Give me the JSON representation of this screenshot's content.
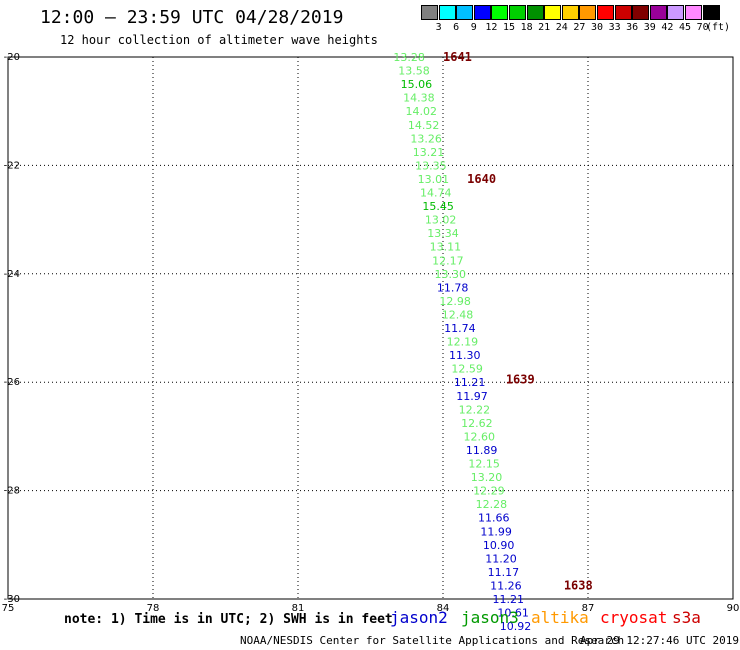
{
  "header": {
    "title": "12:00 – 23:59 UTC 04/28/2019",
    "subtitle": "12 hour collection of altimeter wave heights"
  },
  "color_scale": {
    "unit": "(ft)",
    "swatches": [
      {
        "color": "#808080"
      },
      {
        "color": "#00ffff"
      },
      {
        "color": "#00bfff"
      },
      {
        "color": "#0000ff"
      },
      {
        "color": "#00ff00"
      },
      {
        "color": "#00d000"
      },
      {
        "color": "#009000"
      },
      {
        "color": "#ffff00"
      },
      {
        "color": "#ffd000"
      },
      {
        "color": "#ff9900"
      },
      {
        "color": "#ff0000"
      },
      {
        "color": "#cc0000"
      },
      {
        "color": "#800000"
      },
      {
        "color": "#990099"
      },
      {
        "color": "#cc99ff"
      },
      {
        "color": "#ff88ff"
      },
      {
        "color": "#000000"
      }
    ],
    "labels": [
      "3",
      "6",
      "9",
      "12",
      "15",
      "18",
      "21",
      "24",
      "27",
      "30",
      "33",
      "36",
      "39",
      "42",
      "45",
      "70"
    ]
  },
  "chart_data": {
    "type": "scatter",
    "xlim": [
      75,
      90
    ],
    "ylim": [
      -30,
      -20
    ],
    "x_ticks": [
      75,
      78,
      81,
      84,
      87,
      90
    ],
    "y_ticks": [
      -20,
      -22,
      -24,
      -26,
      -28,
      -30
    ],
    "x_tick_labels": [
      "75",
      "78",
      "81",
      "84",
      "87",
      "90"
    ],
    "y_tick_labels": [
      "-20",
      "-22",
      "-24",
      "-26",
      "-28",
      "-30"
    ],
    "grid": true,
    "colors": {
      "jason2": "#0000cc",
      "jason3": "#00bb00",
      "jason3_light": "#66ee66",
      "pass_label": "#7a0000"
    },
    "series": [
      {
        "name": "jason3",
        "points": [
          {
            "x": 83.3,
            "y": -20.0,
            "label": "13.28",
            "tone": "light"
          },
          {
            "x": 83.4,
            "y": -20.25,
            "label": "13.58",
            "tone": "light"
          },
          {
            "x": 83.45,
            "y": -20.5,
            "label": "15.06",
            "tone": "dark"
          },
          {
            "x": 83.5,
            "y": -20.75,
            "label": "14.38",
            "tone": "light"
          },
          {
            "x": 83.55,
            "y": -21.0,
            "label": "14.02",
            "tone": "light"
          },
          {
            "x": 83.6,
            "y": -21.25,
            "label": "14.52",
            "tone": "light"
          },
          {
            "x": 83.65,
            "y": -21.5,
            "label": "13.26",
            "tone": "light"
          },
          {
            "x": 83.7,
            "y": -21.75,
            "label": "13.21",
            "tone": "light"
          },
          {
            "x": 83.75,
            "y": -22.0,
            "label": "13.35",
            "tone": "light"
          },
          {
            "x": 83.8,
            "y": -22.25,
            "label": "13.01",
            "tone": "light"
          },
          {
            "x": 83.85,
            "y": -22.5,
            "label": "14.74",
            "tone": "light"
          },
          {
            "x": 83.9,
            "y": -22.75,
            "label": "15.45",
            "tone": "dark"
          },
          {
            "x": 83.95,
            "y": -23.0,
            "label": "13.02",
            "tone": "light"
          },
          {
            "x": 84.0,
            "y": -23.25,
            "label": "13.34",
            "tone": "light"
          },
          {
            "x": 84.05,
            "y": -23.5,
            "label": "13.11",
            "tone": "light"
          },
          {
            "x": 84.1,
            "y": -23.75,
            "label": "12.17",
            "tone": "light"
          },
          {
            "x": 84.15,
            "y": -24.0,
            "label": "13.30",
            "tone": "light"
          },
          {
            "x": 84.25,
            "y": -24.5,
            "label": "12.98",
            "tone": "light"
          },
          {
            "x": 84.3,
            "y": -24.75,
            "label": "12.48",
            "tone": "light"
          },
          {
            "x": 84.4,
            "y": -25.25,
            "label": "12.19",
            "tone": "light"
          },
          {
            "x": 84.5,
            "y": -25.75,
            "label": "12.59",
            "tone": "light"
          },
          {
            "x": 84.65,
            "y": -26.5,
            "label": "12.22",
            "tone": "light"
          },
          {
            "x": 84.7,
            "y": -26.75,
            "label": "12.62",
            "tone": "light"
          },
          {
            "x": 84.75,
            "y": -27.0,
            "label": "12.60",
            "tone": "light"
          },
          {
            "x": 84.85,
            "y": -27.5,
            "label": "12.15",
            "tone": "light"
          },
          {
            "x": 84.9,
            "y": -27.75,
            "label": "13.20",
            "tone": "light"
          },
          {
            "x": 84.95,
            "y": -28.0,
            "label": "12.29",
            "tone": "light"
          },
          {
            "x": 85.0,
            "y": -28.25,
            "label": "12.28",
            "tone": "light"
          }
        ]
      },
      {
        "name": "jason2",
        "points": [
          {
            "x": 84.2,
            "y": -24.25,
            "label": "11.78"
          },
          {
            "x": 84.35,
            "y": -25.0,
            "label": "11.74"
          },
          {
            "x": 84.45,
            "y": -25.5,
            "label": "11.30"
          },
          {
            "x": 84.55,
            "y": -26.0,
            "label": "11.21"
          },
          {
            "x": 84.6,
            "y": -26.25,
            "label": "11.97"
          },
          {
            "x": 84.8,
            "y": -27.25,
            "label": "11.89"
          },
          {
            "x": 85.05,
            "y": -28.5,
            "label": "11.66"
          },
          {
            "x": 85.1,
            "y": -28.75,
            "label": "11.99"
          },
          {
            "x": 85.15,
            "y": -29.0,
            "label": "10.90"
          },
          {
            "x": 85.2,
            "y": -29.25,
            "label": "11.20"
          },
          {
            "x": 85.25,
            "y": -29.5,
            "label": "11.17"
          },
          {
            "x": 85.3,
            "y": -29.75,
            "label": "11.26"
          },
          {
            "x": 85.35,
            "y": -30.0,
            "label": "11.21"
          },
          {
            "x": 85.45,
            "y": -30.25,
            "label": "10.61"
          },
          {
            "x": 85.5,
            "y": -30.5,
            "label": "10.92"
          }
        ]
      }
    ],
    "pass_labels": [
      {
        "x": 84.0,
        "y": -20.0,
        "label": "1641"
      },
      {
        "x": 84.5,
        "y": -22.25,
        "label": "1640"
      },
      {
        "x": 85.3,
        "y": -25.95,
        "label": "1639"
      },
      {
        "x": 86.5,
        "y": -29.75,
        "label": "1638"
      }
    ]
  },
  "note": "note: 1) Time is in UTC; 2) SWH is in feet",
  "missions": [
    {
      "label": "jason2",
      "color": "#0000cc"
    },
    {
      "label": "jason3",
      "color": "#009900"
    },
    {
      "label": "altika",
      "color": "#ff9900"
    },
    {
      "label": "cryosat",
      "color": "#ff0000"
    },
    {
      "label": "s3a",
      "color": "#cc0000"
    }
  ],
  "footer": {
    "org": "NOAA/NESDIS Center for Satellite Applications and Research",
    "timestamp": "Apr 29 12:27:46 UTC 2019"
  }
}
